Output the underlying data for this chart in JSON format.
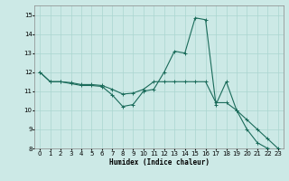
{
  "title": "",
  "xlabel": "Humidex (Indice chaleur)",
  "ylabel": "",
  "bg_color": "#cce9e6",
  "grid_color": "#aad5d0",
  "line_color": "#1a6b5a",
  "xlim": [
    -0.5,
    23.5
  ],
  "ylim": [
    8,
    15.5
  ],
  "xtick_vals": [
    0,
    1,
    2,
    3,
    4,
    5,
    6,
    7,
    8,
    9,
    10,
    11,
    12,
    13,
    14,
    15,
    16,
    17,
    18,
    19,
    20,
    21,
    22,
    23
  ],
  "ytick_vals": [
    8,
    9,
    10,
    11,
    12,
    13,
    14,
    15
  ],
  "series1_x": [
    0,
    1,
    2,
    3,
    4,
    5,
    6,
    7,
    8,
    9,
    10,
    11,
    12,
    13,
    14,
    15,
    16,
    17,
    18,
    19,
    20,
    21,
    22,
    23
  ],
  "series1_y": [
    12.0,
    11.5,
    11.5,
    11.4,
    11.3,
    11.3,
    11.25,
    10.8,
    10.2,
    10.3,
    11.0,
    11.1,
    12.0,
    13.1,
    13.0,
    14.85,
    14.75,
    10.3,
    11.5,
    10.0,
    9.0,
    8.3,
    8.0,
    7.9
  ],
  "series2_x": [
    0,
    1,
    2,
    3,
    4,
    5,
    6,
    7,
    8,
    9,
    10,
    11,
    12,
    13,
    14,
    15,
    16,
    17,
    18,
    19,
    20,
    21,
    22,
    23
  ],
  "series2_y": [
    12.0,
    11.5,
    11.5,
    11.45,
    11.35,
    11.35,
    11.3,
    11.1,
    10.85,
    10.9,
    11.1,
    11.5,
    11.5,
    11.5,
    11.5,
    11.5,
    11.5,
    10.4,
    10.4,
    10.0,
    9.5,
    9.0,
    8.5,
    8.0
  ],
  "xlabel_fontsize": 5.5,
  "ylabel_fontsize": 5.5,
  "tick_labelsize": 5.0,
  "linewidth": 0.8,
  "markersize": 2.5
}
